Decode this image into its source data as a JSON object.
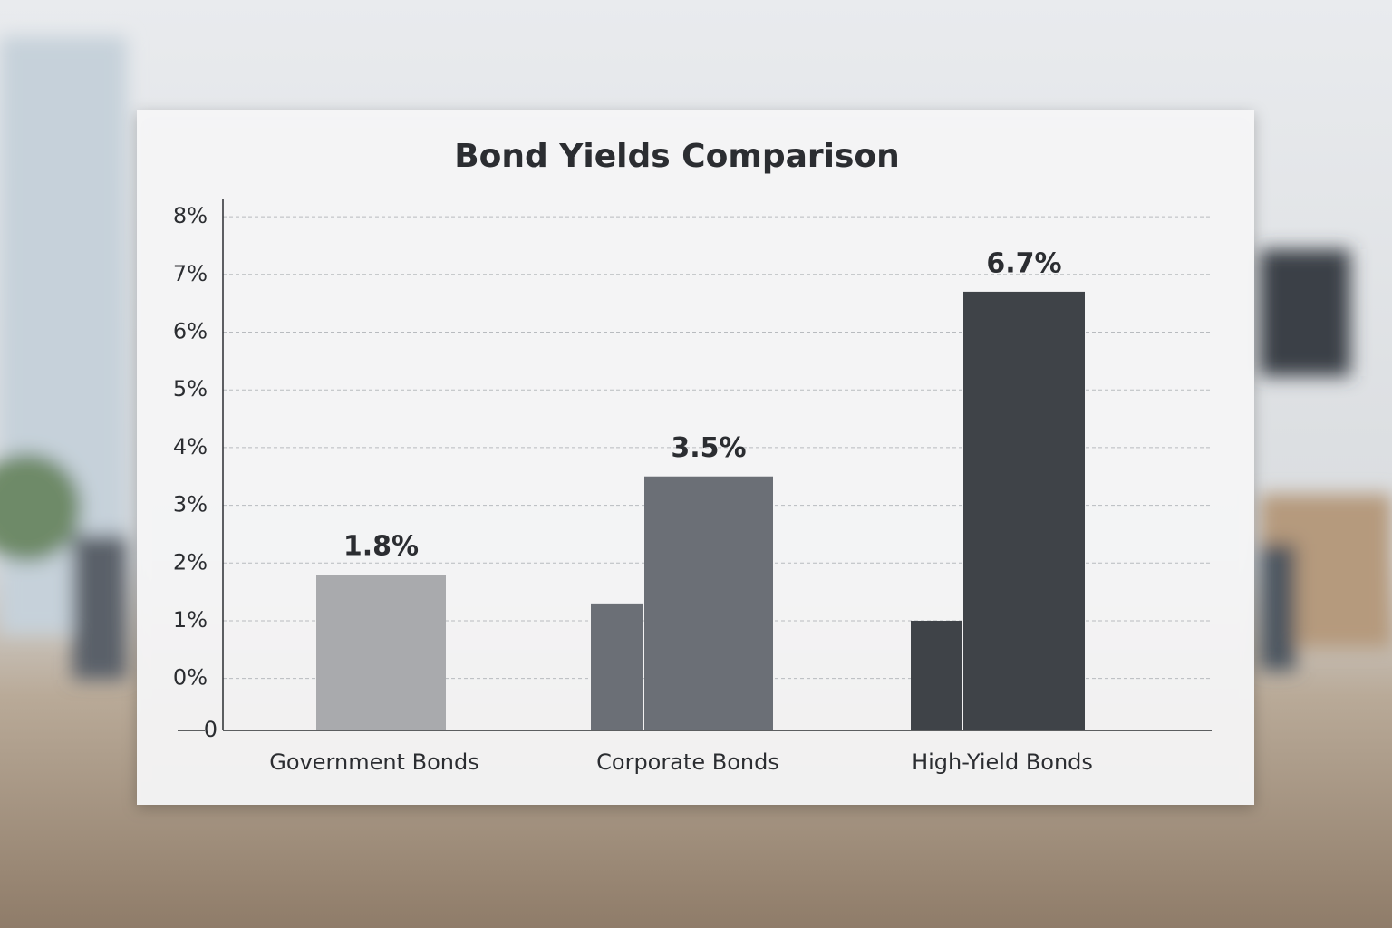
{
  "chart_data": {
    "type": "bar",
    "title": "Bond Yields Comparison",
    "categories": [
      "Government Bonds",
      "Corporate Bonds",
      "High-Yield Bonds"
    ],
    "values": [
      1.8,
      3.5,
      6.7
    ],
    "value_labels": [
      "1.8%",
      "3.5%",
      "6.7%"
    ],
    "secondary_values": [
      null,
      1.3,
      1.0
    ],
    "colors": [
      "#a9aaad",
      "#6b6f76",
      "#3f4348"
    ],
    "ylim": [
      -0.9,
      8.3
    ],
    "yticks": [
      {
        "value": 0,
        "label": "0%"
      },
      {
        "value": 1,
        "label": "1%"
      },
      {
        "value": 2,
        "label": "2%"
      },
      {
        "value": 3,
        "label": "3%"
      },
      {
        "value": 4,
        "label": "4%"
      },
      {
        "value": 5,
        "label": "5%"
      },
      {
        "value": 6,
        "label": "6%"
      },
      {
        "value": 7,
        "label": "7%"
      },
      {
        "value": 8,
        "label": "8%"
      }
    ],
    "axis_origin_label": "0",
    "grid": true
  }
}
